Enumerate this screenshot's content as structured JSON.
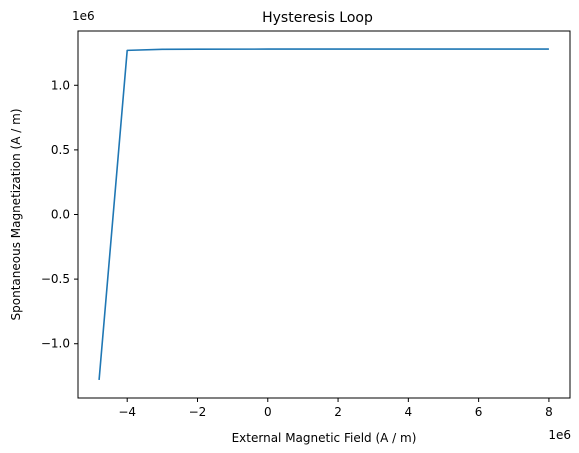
{
  "chart_data": {
    "type": "line",
    "title": "Hysteresis Loop",
    "xlabel": "External Magnetic Field (A / m)",
    "ylabel": "Spontaneous Magnetization (A / m)",
    "x_offset_text": "1e6",
    "y_offset_text": "1e6",
    "x_ticks": [
      -4,
      -2,
      0,
      2,
      4,
      6,
      8
    ],
    "x_tick_labels": [
      "−4",
      "−2",
      "0",
      "2",
      "4",
      "6",
      "8"
    ],
    "y_ticks": [
      -1.0,
      -0.5,
      0.0,
      0.5,
      1.0
    ],
    "y_tick_labels": [
      "−1.0",
      "−0.5",
      "0.0",
      "0.5",
      "1.0"
    ],
    "xlim": [
      -5.4,
      8.6
    ],
    "ylim": [
      -1.42,
      1.42
    ],
    "grid": false,
    "series": [
      {
        "color": "#1f77b4",
        "x": [
          -4.8,
          -4.0,
          -3.0,
          -2.0,
          0.0,
          2.0,
          4.0,
          6.0,
          8.0
        ],
        "y": [
          -1.28,
          1.27,
          1.278,
          1.279,
          1.28,
          1.28,
          1.28,
          1.28,
          1.28
        ]
      }
    ]
  }
}
